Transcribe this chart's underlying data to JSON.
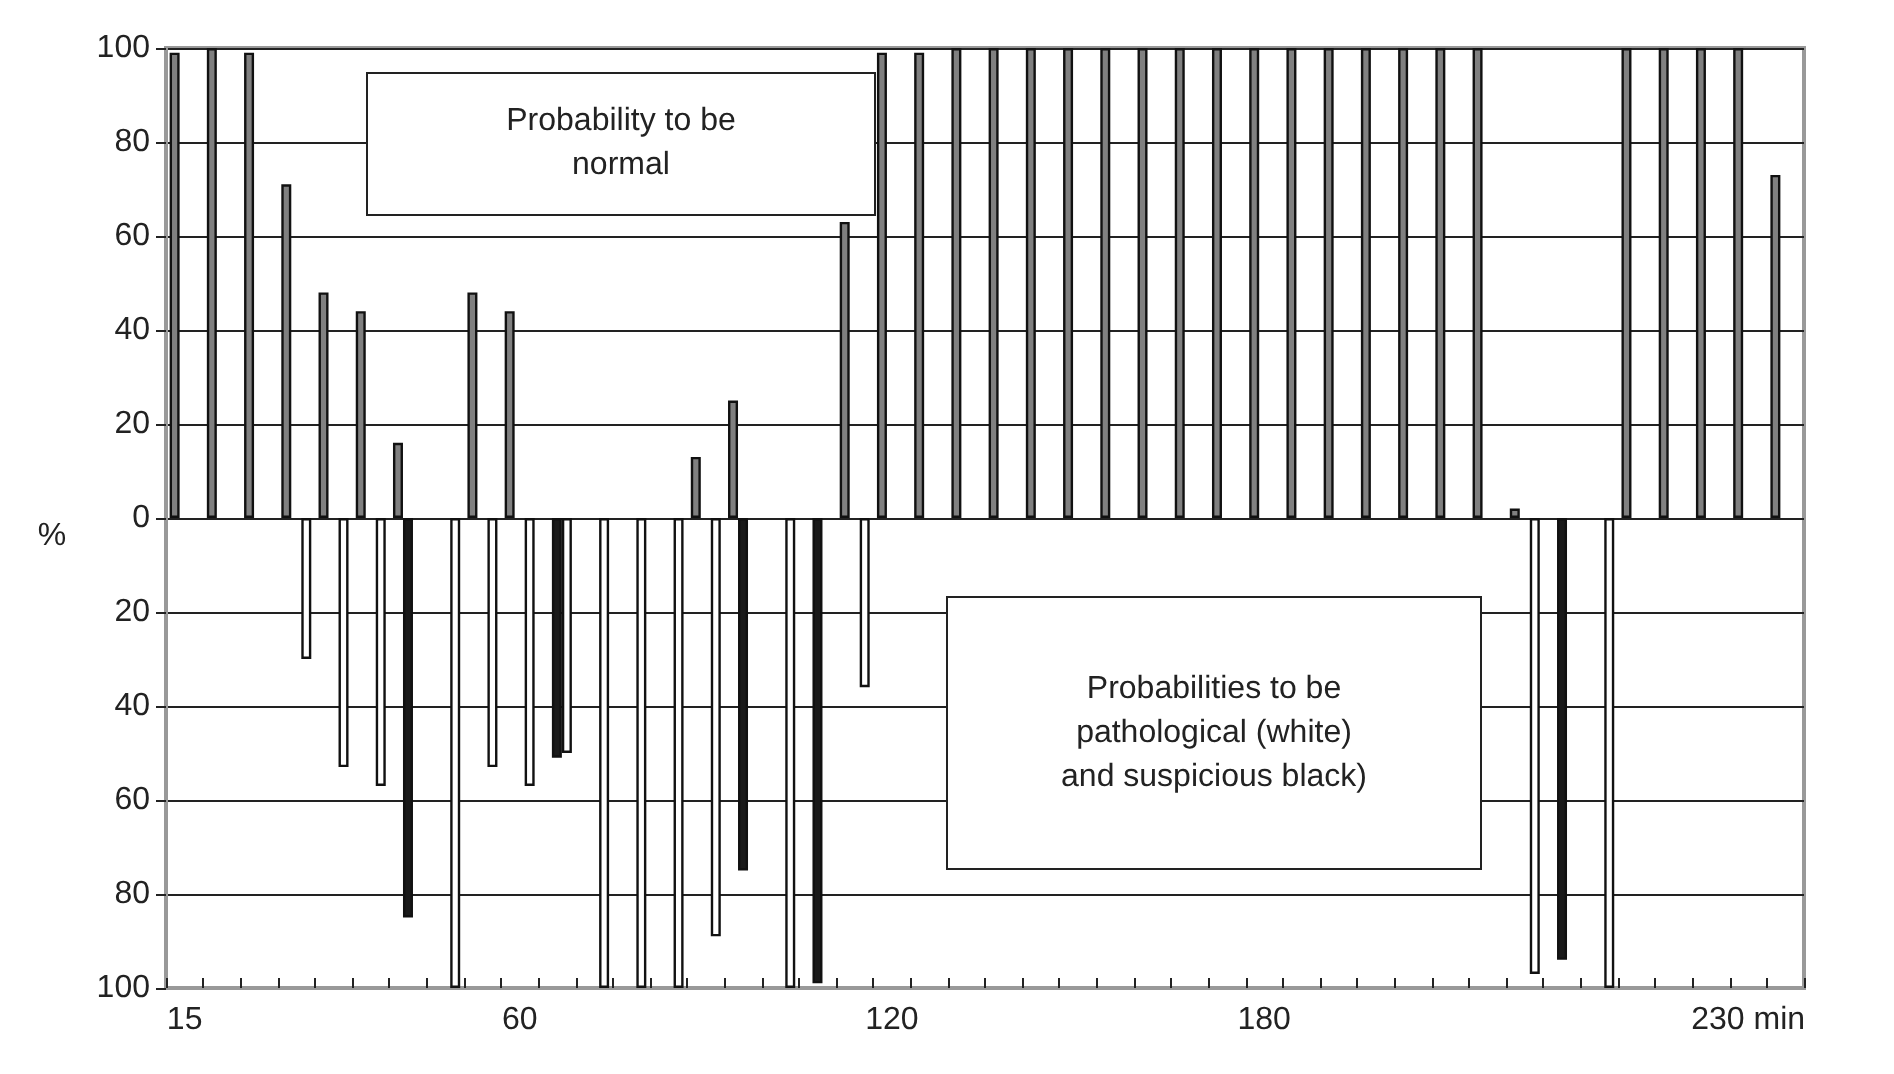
{
  "chart_data": {
    "type": "bar",
    "categories": [
      "15",
      null,
      null,
      null,
      null,
      null,
      null,
      null,
      null,
      "60",
      null,
      null,
      null,
      null,
      null,
      null,
      null,
      null,
      null,
      "120",
      null,
      null,
      null,
      null,
      null,
      null,
      null,
      null,
      null,
      "180",
      null,
      null,
      null,
      null,
      null,
      null,
      null,
      null,
      null,
      null,
      null,
      null,
      "230 min",
      null
    ],
    "series": [
      {
        "color": "#808080",
        "values": [
          99,
          100,
          99,
          71,
          48,
          44,
          16,
          null,
          48,
          44,
          null,
          null,
          null,
          null,
          13,
          25,
          null,
          null,
          63,
          99,
          99,
          100,
          100,
          100,
          100,
          100,
          100,
          100,
          100,
          100,
          100,
          100,
          100,
          100,
          100,
          100,
          2,
          null,
          null,
          100,
          100,
          100,
          100,
          73
        ]
      },
      {
        "color": "#1a1a1a",
        "values": [
          null,
          null,
          null,
          null,
          null,
          null,
          -85,
          null,
          null,
          null,
          -51,
          null,
          null,
          null,
          null,
          -75,
          null,
          -99,
          null,
          null,
          null,
          null,
          null,
          null,
          null,
          null,
          null,
          null,
          null,
          null,
          null,
          null,
          null,
          null,
          null,
          null,
          null,
          -94,
          null,
          null,
          null,
          null,
          null,
          null
        ]
      },
      {
        "color": "#ffffff",
        "values": [
          null,
          null,
          null,
          -30,
          -53,
          -57,
          null,
          -100,
          -53,
          -57,
          -50,
          -100,
          -100,
          -100,
          -89,
          null,
          -100,
          null,
          -36,
          null,
          null,
          null,
          null,
          null,
          null,
          null,
          null,
          null,
          null,
          null,
          null,
          null,
          null,
          null,
          null,
          null,
          -97,
          null,
          -100,
          null,
          null,
          null,
          null,
          null
        ]
      }
    ],
    "ylabel": "%",
    "ylim": [
      -100,
      100
    ],
    "yticks": [
      {
        "value": -100,
        "label": "100"
      },
      {
        "value": -80,
        "label": "80"
      },
      {
        "value": -60,
        "label": "60"
      },
      {
        "value": -40,
        "label": "40"
      },
      {
        "value": -20,
        "label": "20"
      },
      0,
      20,
      40,
      60,
      80,
      100
    ],
    "grid": "y",
    "annotations": [
      "Probability to be\nnormal",
      "Probabilities to be\npathological (white)\nand suspicious black)"
    ]
  }
}
